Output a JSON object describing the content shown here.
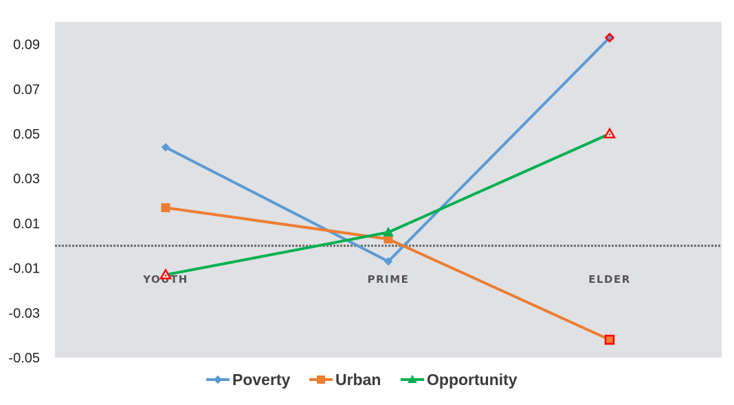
{
  "chart_data": {
    "type": "line",
    "categories": [
      "YOUTH",
      "PRIME",
      "ELDER"
    ],
    "series": [
      {
        "name": "Poverty",
        "values": [
          0.044,
          -0.007,
          0.093
        ],
        "color": "#5b9bd5",
        "marker": "diamond"
      },
      {
        "name": "Urban",
        "values": [
          0.017,
          0.003,
          -0.042
        ],
        "color": "#ed7d31",
        "marker": "square"
      },
      {
        "name": "Opportunity",
        "values": [
          -0.013,
          0.006,
          0.05
        ],
        "color": "#00b050",
        "marker": "triangle"
      }
    ],
    "ylim": [
      -0.05,
      0.1
    ],
    "yticks": [
      "0.09",
      "0.07",
      "0.05",
      "0.03",
      "0.01",
      "-0.01",
      "-0.03",
      "-0.05"
    ],
    "ytick_values": [
      0.09,
      0.07,
      0.05,
      0.03,
      0.01,
      -0.01,
      -0.03,
      -0.05
    ],
    "reference_line": 0,
    "highlight_color": "#ff0000",
    "plot_background": "#dfe1e4",
    "grid": false,
    "legend": "bottom",
    "title": "",
    "xlabel": "",
    "ylabel": ""
  }
}
